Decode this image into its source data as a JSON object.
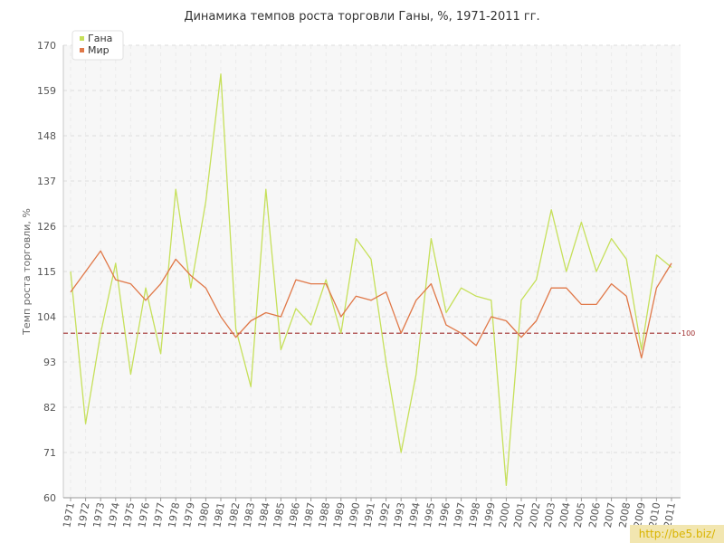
{
  "chart_data": {
    "type": "line",
    "title": "Динамика темпов роста торговли Ганы, %, 1971-2011 гг.",
    "ylabel": "Темп роста торговли, %",
    "xlabel": "",
    "ylim": [
      60,
      170
    ],
    "yticks": [
      60,
      71,
      82,
      93,
      104,
      115,
      126,
      137,
      148,
      159,
      170
    ],
    "x": [
      "1971",
      "1972",
      "1973",
      "1974",
      "1975",
      "1976",
      "1977",
      "1978",
      "1979",
      "1980",
      "1981",
      "1982",
      "1983",
      "1984",
      "1985",
      "1986",
      "1987",
      "1988",
      "1989",
      "1990",
      "1991",
      "1992",
      "1993",
      "1994",
      "1995",
      "1996",
      "1997",
      "1998",
      "1999",
      "2000",
      "2001",
      "2002",
      "2003",
      "2004",
      "2005",
      "2006",
      "2007",
      "2008",
      "2009",
      "2010",
      "2011"
    ],
    "series": [
      {
        "name": "Гана",
        "color": "#c6e05a",
        "values": [
          115,
          78,
          100,
          117,
          90,
          111,
          95,
          135,
          111,
          132,
          163,
          101,
          87,
          135,
          96,
          106,
          102,
          113,
          100,
          123,
          118,
          93,
          71,
          90,
          123,
          105,
          111,
          109,
          108,
          63,
          108,
          113,
          130,
          115,
          127,
          115,
          123,
          118,
          96,
          119,
          116
        ]
      },
      {
        "name": "Мир",
        "color": "#e07848",
        "values": [
          110,
          115,
          120,
          113,
          112,
          108,
          112,
          118,
          114,
          111,
          104,
          99,
          103,
          105,
          104,
          113,
          112,
          112,
          104,
          109,
          108,
          110,
          100,
          108,
          112,
          102,
          100,
          97,
          104,
          103,
          99,
          103,
          111,
          111,
          107,
          107,
          112,
          109,
          94,
          111,
          117
        ]
      }
    ],
    "reference_line": {
      "value": 100,
      "label": "100",
      "color": "#a03030"
    },
    "grid": true,
    "legend_position": "top-left"
  },
  "watermark": "http://be5.biz/"
}
